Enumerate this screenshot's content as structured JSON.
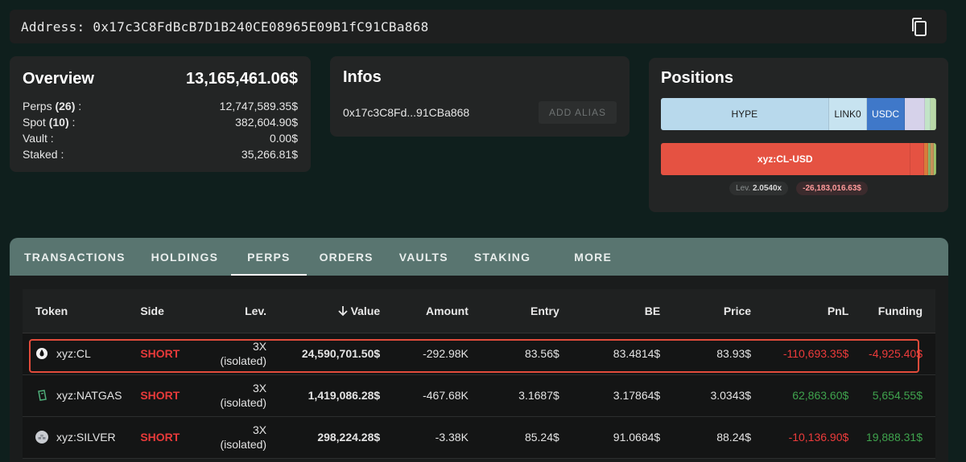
{
  "address": {
    "label": "Address: 0x17c3C8FdBcB7D1B240CE08965E09B1fC91CBa868"
  },
  "overview": {
    "title": "Overview",
    "total": "13,165,461.06$",
    "rows": [
      {
        "label_pre": "Perps ",
        "count": "(26)",
        "label_post": " :",
        "value": "12,747,589.35$"
      },
      {
        "label_pre": "Spot ",
        "count": "(10)",
        "label_post": " :",
        "value": "382,604.90$"
      },
      {
        "label_pre": "Vault :",
        "count": "",
        "label_post": "",
        "value": "0.00$"
      },
      {
        "label_pre": "Staked :",
        "count": "",
        "label_post": "",
        "value": "35,266.81$"
      }
    ]
  },
  "infos": {
    "title": "Infos",
    "short_address": "0x17c3C8Fd...91CBa868",
    "alias_button": "ADD ALIAS"
  },
  "positions": {
    "title": "Positions",
    "long_segments": [
      {
        "label": "HYPE",
        "share": 0.61,
        "color": "#b8d9ec"
      },
      {
        "label": "LINK0",
        "share": 0.14,
        "color": "#c7e3f0"
      },
      {
        "label": "USDC",
        "share": 0.135,
        "color": "#3f78c9"
      },
      {
        "label": "",
        "share": 0.075,
        "color": "#d6d2ea"
      },
      {
        "label": "",
        "share": 0.02,
        "color": "#c2e4c7"
      },
      {
        "label": "",
        "share": 0.02,
        "color": "#b9d8a8"
      }
    ],
    "short_segments": [
      {
        "label": "xyz:CL-USD",
        "share": 0.905,
        "color": "#e55242"
      },
      {
        "label": "",
        "share": 0.05,
        "color": "#e55242"
      },
      {
        "label": "",
        "share": 0.015,
        "color": "#d87a3a"
      },
      {
        "label": "",
        "share": 0.01,
        "color": "#8bb36a"
      },
      {
        "label": "",
        "share": 0.01,
        "color": "#c6915a"
      },
      {
        "label": "",
        "share": 0.01,
        "color": "#9bc46c"
      }
    ],
    "lev_label": "Lev.",
    "lev_value": "2.0540x",
    "pnl_badge": "-26,183,016.63$",
    "colors": {
      "short_bar": "#e55242",
      "usdc": "#3f78c9",
      "long_light": "#b8d9ec"
    }
  },
  "tabs": [
    "TRANSACTIONS",
    "HOLDINGS",
    "PERPS",
    "ORDERS",
    "VAULTS",
    "STAKING",
    "MORE"
  ],
  "active_tab": "PERPS",
  "table": {
    "headers": {
      "token": "Token",
      "side": "Side",
      "lev": "Lev.",
      "value": "Value",
      "amount": "Amount",
      "entry": "Entry",
      "be": "BE",
      "price": "Price",
      "pnl": "PnL",
      "funding": "Funding"
    },
    "sort_icon": "arrow-down-icon",
    "rows": [
      {
        "token": "xyz:CL",
        "icon": "oil-drop-icon",
        "side": "SHORT",
        "lev": "3X",
        "lev_mode": "(isolated)",
        "value": "24,590,701.50$",
        "amount": "-292.98K",
        "entry": "83.56$",
        "be": "83.4814$",
        "price": "83.93$",
        "pnl": "-110,693.35$",
        "funding": "-4,925.40$",
        "pnl_sign": "neg",
        "funding_sign": "neg"
      },
      {
        "token": "xyz:NATGAS",
        "icon": "gas-cylinder-icon",
        "side": "SHORT",
        "lev": "3X",
        "lev_mode": "(isolated)",
        "value": "1,419,086.28$",
        "amount": "-467.68K",
        "entry": "3.1687$",
        "be": "3.17864$",
        "price": "3.0343$",
        "pnl": "62,863.60$",
        "funding": "5,654.55$",
        "pnl_sign": "pos",
        "funding_sign": "pos"
      },
      {
        "token": "xyz:SILVER",
        "icon": "silver-bars-icon",
        "side": "SHORT",
        "lev": "3X",
        "lev_mode": "(isolated)",
        "value": "298,224.28$",
        "amount": "-3.38K",
        "entry": "85.24$",
        "be": "91.0684$",
        "price": "88.24$",
        "pnl": "-10,136.90$",
        "funding": "19,888.31$",
        "pnl_sign": "neg",
        "funding_sign": "pos"
      }
    ]
  }
}
